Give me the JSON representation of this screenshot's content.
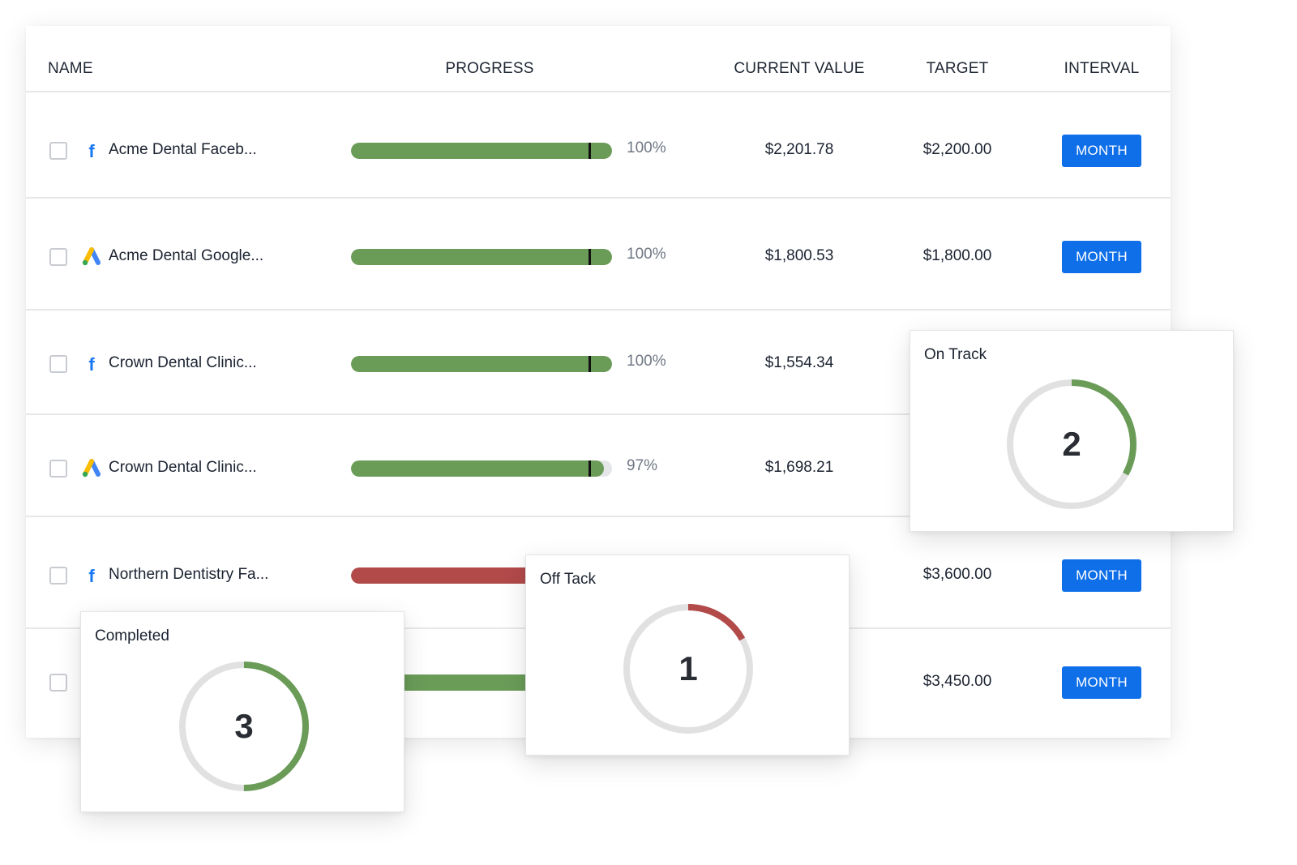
{
  "table": {
    "headers": {
      "name": "NAME",
      "progress": "PROGRESS",
      "current_value": "CURRENT VALUE",
      "target": "TARGET",
      "interval": "INTERVAL"
    },
    "rows": [
      {
        "name": "Acme Dental Faceb...",
        "source_icon": "facebook-icon",
        "progress_fraction": 1.0,
        "progress_color": "#6a9c58",
        "percent": "100%",
        "current_value": "$2,201.78",
        "target": "$2,200.00",
        "interval": "MONTH"
      },
      {
        "name": "Acme Dental Google...",
        "source_icon": "google-ads-icon",
        "progress_fraction": 1.0,
        "progress_color": "#6a9c58",
        "percent": "100%",
        "current_value": "$1,800.53",
        "target": "$1,800.00",
        "interval": "MONTH"
      },
      {
        "name": "Crown Dental Clinic...",
        "source_icon": "facebook-icon",
        "progress_fraction": 1.0,
        "progress_color": "#6a9c58",
        "percent": "100%",
        "current_value": "$1,554.34",
        "target": "",
        "interval": ""
      },
      {
        "name": "Crown Dental Clinic...",
        "source_icon": "google-ads-icon",
        "progress_fraction": 0.97,
        "progress_color": "#6a9c58",
        "percent": "97%",
        "current_value": "$1,698.21",
        "target": "",
        "interval": ""
      },
      {
        "name": "Northern Dentistry Fa...",
        "source_icon": "facebook-icon",
        "progress_color": "#b24a4a",
        "percent": "",
        "current_value": "",
        "target": "$3,600.00",
        "interval": "MONTH"
      },
      {
        "name": "",
        "source_icon": "",
        "progress_color": "#6a9c58",
        "percent": "",
        "current_value": "",
        "target": "$3,450.00",
        "interval": "MONTH"
      }
    ]
  },
  "stat_cards": {
    "on_track": {
      "title": "On Track",
      "value": "2",
      "ring_fraction": 0.33,
      "ring_color": "#6a9c58"
    },
    "off_track": {
      "title": "Off Tack",
      "value": "1",
      "ring_fraction": 0.17,
      "ring_color": "#b24a4a"
    },
    "completed": {
      "title": "Completed",
      "value": "3",
      "ring_fraction": 0.5,
      "ring_color": "#6a9c58"
    }
  },
  "colors": {
    "accent_button": "#0f6fe8",
    "on_track_green": "#6a9c58",
    "off_track_red": "#b24a4a",
    "facebook_blue": "#1877f2"
  }
}
